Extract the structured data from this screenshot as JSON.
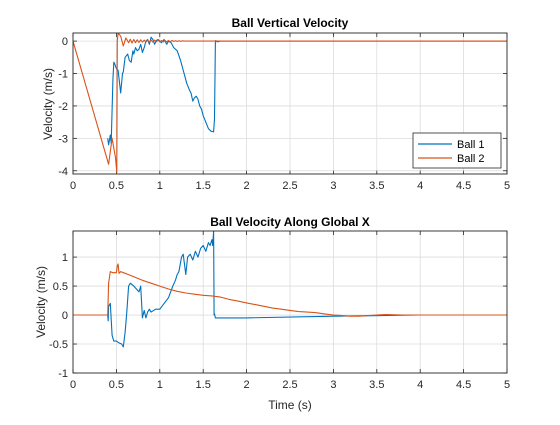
{
  "colors": {
    "ball1": "#0072BD",
    "ball2": "#D95319",
    "grid": "#DCDCDC",
    "axis": "#262626"
  },
  "chart_data": [
    {
      "type": "line",
      "title": "Ball Vertical Velocity",
      "xlabel": "",
      "ylabel": "Velocity (m/s)",
      "xlim": [
        0,
        5
      ],
      "ylim": [
        -4.1,
        0.25
      ],
      "xticks": [
        "0",
        "0.5",
        "1",
        "1.5",
        "2",
        "2.5",
        "3",
        "3.5",
        "4",
        "4.5",
        "5"
      ],
      "yticks": [
        "0",
        "-1",
        "-2",
        "-3",
        "-4"
      ],
      "grid": true,
      "legend_position": "bottom-right",
      "legend": [
        "Ball 1",
        "Ball 2"
      ],
      "series": [
        {
          "name": "Ball 1",
          "x": [
            0.4,
            0.41,
            0.43,
            0.44,
            0.46,
            0.47,
            0.48,
            0.5,
            0.52,
            0.55,
            0.57,
            0.58,
            0.6,
            0.63,
            0.65,
            0.67,
            0.69,
            0.7,
            0.72,
            0.74,
            0.76,
            0.78,
            0.8,
            0.82,
            0.84,
            0.86,
            0.88,
            0.9,
            0.92,
            0.94,
            0.96,
            0.98,
            1.0,
            1.02,
            1.05,
            1.08,
            1.1,
            1.13,
            1.16,
            1.2,
            1.24,
            1.28,
            1.31,
            1.34,
            1.36,
            1.38,
            1.4,
            1.42,
            1.44,
            1.46,
            1.48,
            1.5,
            1.53,
            1.56,
            1.59,
            1.62,
            1.63,
            1.64,
            1.645,
            1.65,
            1.66,
            1.7,
            2.0,
            3.0,
            4.0,
            5.0
          ],
          "y": [
            -3.0,
            -3.2,
            -2.9,
            -3.15,
            -1.2,
            -0.65,
            -0.7,
            -0.85,
            -0.9,
            -1.6,
            -1.0,
            -0.95,
            -0.5,
            -0.4,
            -0.6,
            -0.65,
            -0.3,
            -0.4,
            -0.2,
            -0.3,
            -0.25,
            -0.1,
            -0.35,
            -0.2,
            0.0,
            0.05,
            -0.1,
            0.12,
            0.05,
            -0.1,
            0.02,
            0.05,
            0.0,
            -0.05,
            0.05,
            -0.1,
            0.0,
            -0.05,
            -0.2,
            -0.3,
            -0.6,
            -1.0,
            -1.3,
            -1.5,
            -1.6,
            -1.85,
            -1.75,
            -1.7,
            -1.8,
            -2.0,
            -2.1,
            -2.3,
            -2.5,
            -2.7,
            -2.78,
            -2.8,
            -2.4,
            0.0,
            0.02,
            0.0,
            -0.02,
            0.0,
            0.0,
            0.0,
            0.0,
            0.0
          ]
        },
        {
          "name": "Ball 2",
          "x": [
            0.0,
            0.41,
            0.45,
            0.49,
            0.505,
            0.51,
            0.52,
            0.55,
            0.58,
            0.61,
            0.64,
            0.66,
            0.68,
            0.7,
            0.72,
            0.74,
            0.76,
            0.78,
            0.8,
            0.82,
            0.84,
            0.86,
            0.88,
            0.9,
            0.92,
            0.94,
            0.96,
            0.98,
            1.0,
            1.02,
            1.04,
            1.06,
            1.08,
            1.1,
            1.12,
            1.14,
            1.16,
            1.18,
            1.2,
            1.22,
            1.24,
            1.26,
            1.28,
            1.3,
            1.4,
            2.0,
            3.0,
            4.0,
            5.0
          ],
          "y": [
            0.0,
            -3.8,
            -3.0,
            -3.6,
            -4.05,
            0.0,
            0.25,
            0.15,
            -0.15,
            0.1,
            -0.05,
            0.06,
            -0.06,
            0.05,
            -0.05,
            0.04,
            -0.04,
            0.04,
            -0.03,
            0.03,
            -0.03,
            0.03,
            -0.03,
            0.03,
            -0.03,
            0.03,
            -0.02,
            0.03,
            -0.02,
            0.02,
            -0.02,
            0.02,
            -0.02,
            0.02,
            -0.02,
            0.02,
            -0.01,
            0.01,
            -0.01,
            0.01,
            -0.01,
            0.01,
            0.0,
            0.0,
            0.0,
            0.0,
            0.0,
            0.0,
            0.0
          ]
        }
      ]
    },
    {
      "type": "line",
      "title": "Ball Velocity Along Global X",
      "xlabel": "Time (s)",
      "ylabel": "Velocity (m/s)",
      "xlim": [
        0,
        5
      ],
      "ylim": [
        -1,
        1.45
      ],
      "xticks": [
        "0",
        "0.5",
        "1",
        "1.5",
        "2",
        "2.5",
        "3",
        "3.5",
        "4",
        "4.5",
        "5"
      ],
      "yticks": [
        "1",
        "0.5",
        "0",
        "-0.5",
        "-1"
      ],
      "grid": true,
      "series": [
        {
          "name": "Ball 1",
          "x": [
            0.0,
            0.4,
            0.405,
            0.41,
            0.43,
            0.45,
            0.47,
            0.5,
            0.53,
            0.56,
            0.58,
            0.6,
            0.62,
            0.64,
            0.66,
            0.7,
            0.76,
            0.78,
            0.8,
            0.82,
            0.84,
            0.86,
            0.88,
            0.9,
            0.95,
            1.0,
            1.05,
            1.1,
            1.15,
            1.18,
            1.2,
            1.22,
            1.25,
            1.27,
            1.3,
            1.32,
            1.35,
            1.38,
            1.41,
            1.44,
            1.47,
            1.5,
            1.53,
            1.56,
            1.58,
            1.6,
            1.61,
            1.62,
            1.625,
            1.63,
            1.64,
            1.66,
            1.7,
            2.0,
            3.0,
            4.0,
            5.0
          ],
          "y": [
            0.0,
            0.0,
            -0.1,
            0.15,
            0.2,
            -0.35,
            -0.45,
            -0.45,
            -0.48,
            -0.5,
            -0.55,
            -0.3,
            0.05,
            0.5,
            0.55,
            0.5,
            0.4,
            0.5,
            -0.05,
            0.08,
            -0.05,
            0.05,
            0.1,
            0.05,
            0.1,
            0.1,
            0.2,
            0.3,
            0.5,
            0.6,
            0.7,
            0.75,
            1.0,
            1.05,
            0.7,
            1.0,
            1.05,
            0.95,
            1.1,
            1.0,
            1.15,
            1.2,
            1.1,
            1.25,
            1.2,
            1.3,
            1.2,
            1.45,
            0.0,
            0.02,
            -0.05,
            -0.05,
            -0.05,
            -0.05,
            -0.02,
            0.0,
            0.0
          ]
        },
        {
          "name": "Ball 2",
          "x": [
            0.0,
            0.4,
            0.41,
            0.43,
            0.46,
            0.5,
            0.51,
            0.52,
            0.53,
            0.55,
            0.6,
            0.7,
            0.8,
            0.9,
            1.0,
            1.1,
            1.2,
            1.3,
            1.4,
            1.5,
            1.6,
            1.7,
            1.8,
            1.9,
            2.0,
            2.1,
            2.2,
            2.3,
            2.4,
            2.5,
            2.6,
            2.7,
            2.8,
            2.9,
            3.0,
            3.1,
            3.2,
            3.3,
            3.4,
            3.5,
            3.6,
            3.8,
            4.0,
            4.5,
            5.0
          ],
          "y": [
            0.0,
            0.0,
            0.55,
            0.75,
            0.73,
            0.73,
            0.85,
            0.88,
            0.72,
            0.75,
            0.72,
            0.66,
            0.6,
            0.55,
            0.5,
            0.45,
            0.41,
            0.38,
            0.36,
            0.34,
            0.33,
            0.31,
            0.27,
            0.24,
            0.21,
            0.18,
            0.15,
            0.12,
            0.1,
            0.08,
            0.06,
            0.05,
            0.04,
            0.02,
            0.0,
            -0.01,
            -0.02,
            -0.02,
            -0.01,
            0.0,
            0.01,
            0.0,
            0.0,
            0.0,
            0.0
          ]
        }
      ]
    }
  ]
}
